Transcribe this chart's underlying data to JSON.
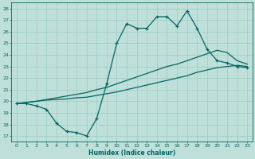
{
  "xlabel": "Humidex (Indice chaleur)",
  "xlim": [
    -0.5,
    23.5
  ],
  "ylim": [
    16.5,
    28.5
  ],
  "yticks": [
    17,
    18,
    19,
    20,
    21,
    22,
    23,
    24,
    25,
    26,
    27,
    28
  ],
  "xticks": [
    0,
    1,
    2,
    3,
    4,
    5,
    6,
    7,
    8,
    9,
    10,
    11,
    12,
    13,
    14,
    15,
    16,
    17,
    18,
    19,
    20,
    21,
    22,
    23
  ],
  "bg_color": "#bfe0d8",
  "line_color": "#006666",
  "grid_color": "#99ccc4",
  "line1_x": [
    0,
    1,
    2,
    3,
    4,
    5,
    6,
    7,
    8,
    9,
    10,
    11,
    12,
    13,
    14,
    15,
    16,
    17,
    18,
    19,
    20,
    21,
    22,
    23
  ],
  "line1_y": [
    19.8,
    19.8,
    19.6,
    19.3,
    18.1,
    17.4,
    17.3,
    17.0,
    18.5,
    21.5,
    25.0,
    26.7,
    26.3,
    26.3,
    27.3,
    27.3,
    26.5,
    27.8,
    26.3,
    24.5,
    23.5,
    23.3,
    23.0,
    22.9
  ],
  "line2_x": [
    0,
    1,
    2,
    3,
    4,
    5,
    6,
    7,
    8,
    9,
    10,
    11,
    12,
    13,
    14,
    15,
    16,
    17,
    18,
    19,
    20,
    21,
    22,
    23
  ],
  "line2_y": [
    19.8,
    19.9,
    20.0,
    20.1,
    20.15,
    20.2,
    20.3,
    20.35,
    20.5,
    20.65,
    20.8,
    21.0,
    21.2,
    21.4,
    21.6,
    21.8,
    22.0,
    22.2,
    22.5,
    22.7,
    22.9,
    23.0,
    23.1,
    23.0
  ],
  "line3_x": [
    0,
    1,
    2,
    3,
    4,
    5,
    6,
    7,
    8,
    9,
    10,
    11,
    12,
    13,
    14,
    15,
    16,
    17,
    18,
    19,
    20,
    21,
    22,
    23
  ],
  "line3_y": [
    19.8,
    19.9,
    20.0,
    20.15,
    20.3,
    20.45,
    20.6,
    20.75,
    21.0,
    21.2,
    21.5,
    21.8,
    22.1,
    22.4,
    22.7,
    23.0,
    23.2,
    23.5,
    23.8,
    24.1,
    24.4,
    24.2,
    23.5,
    23.2
  ]
}
